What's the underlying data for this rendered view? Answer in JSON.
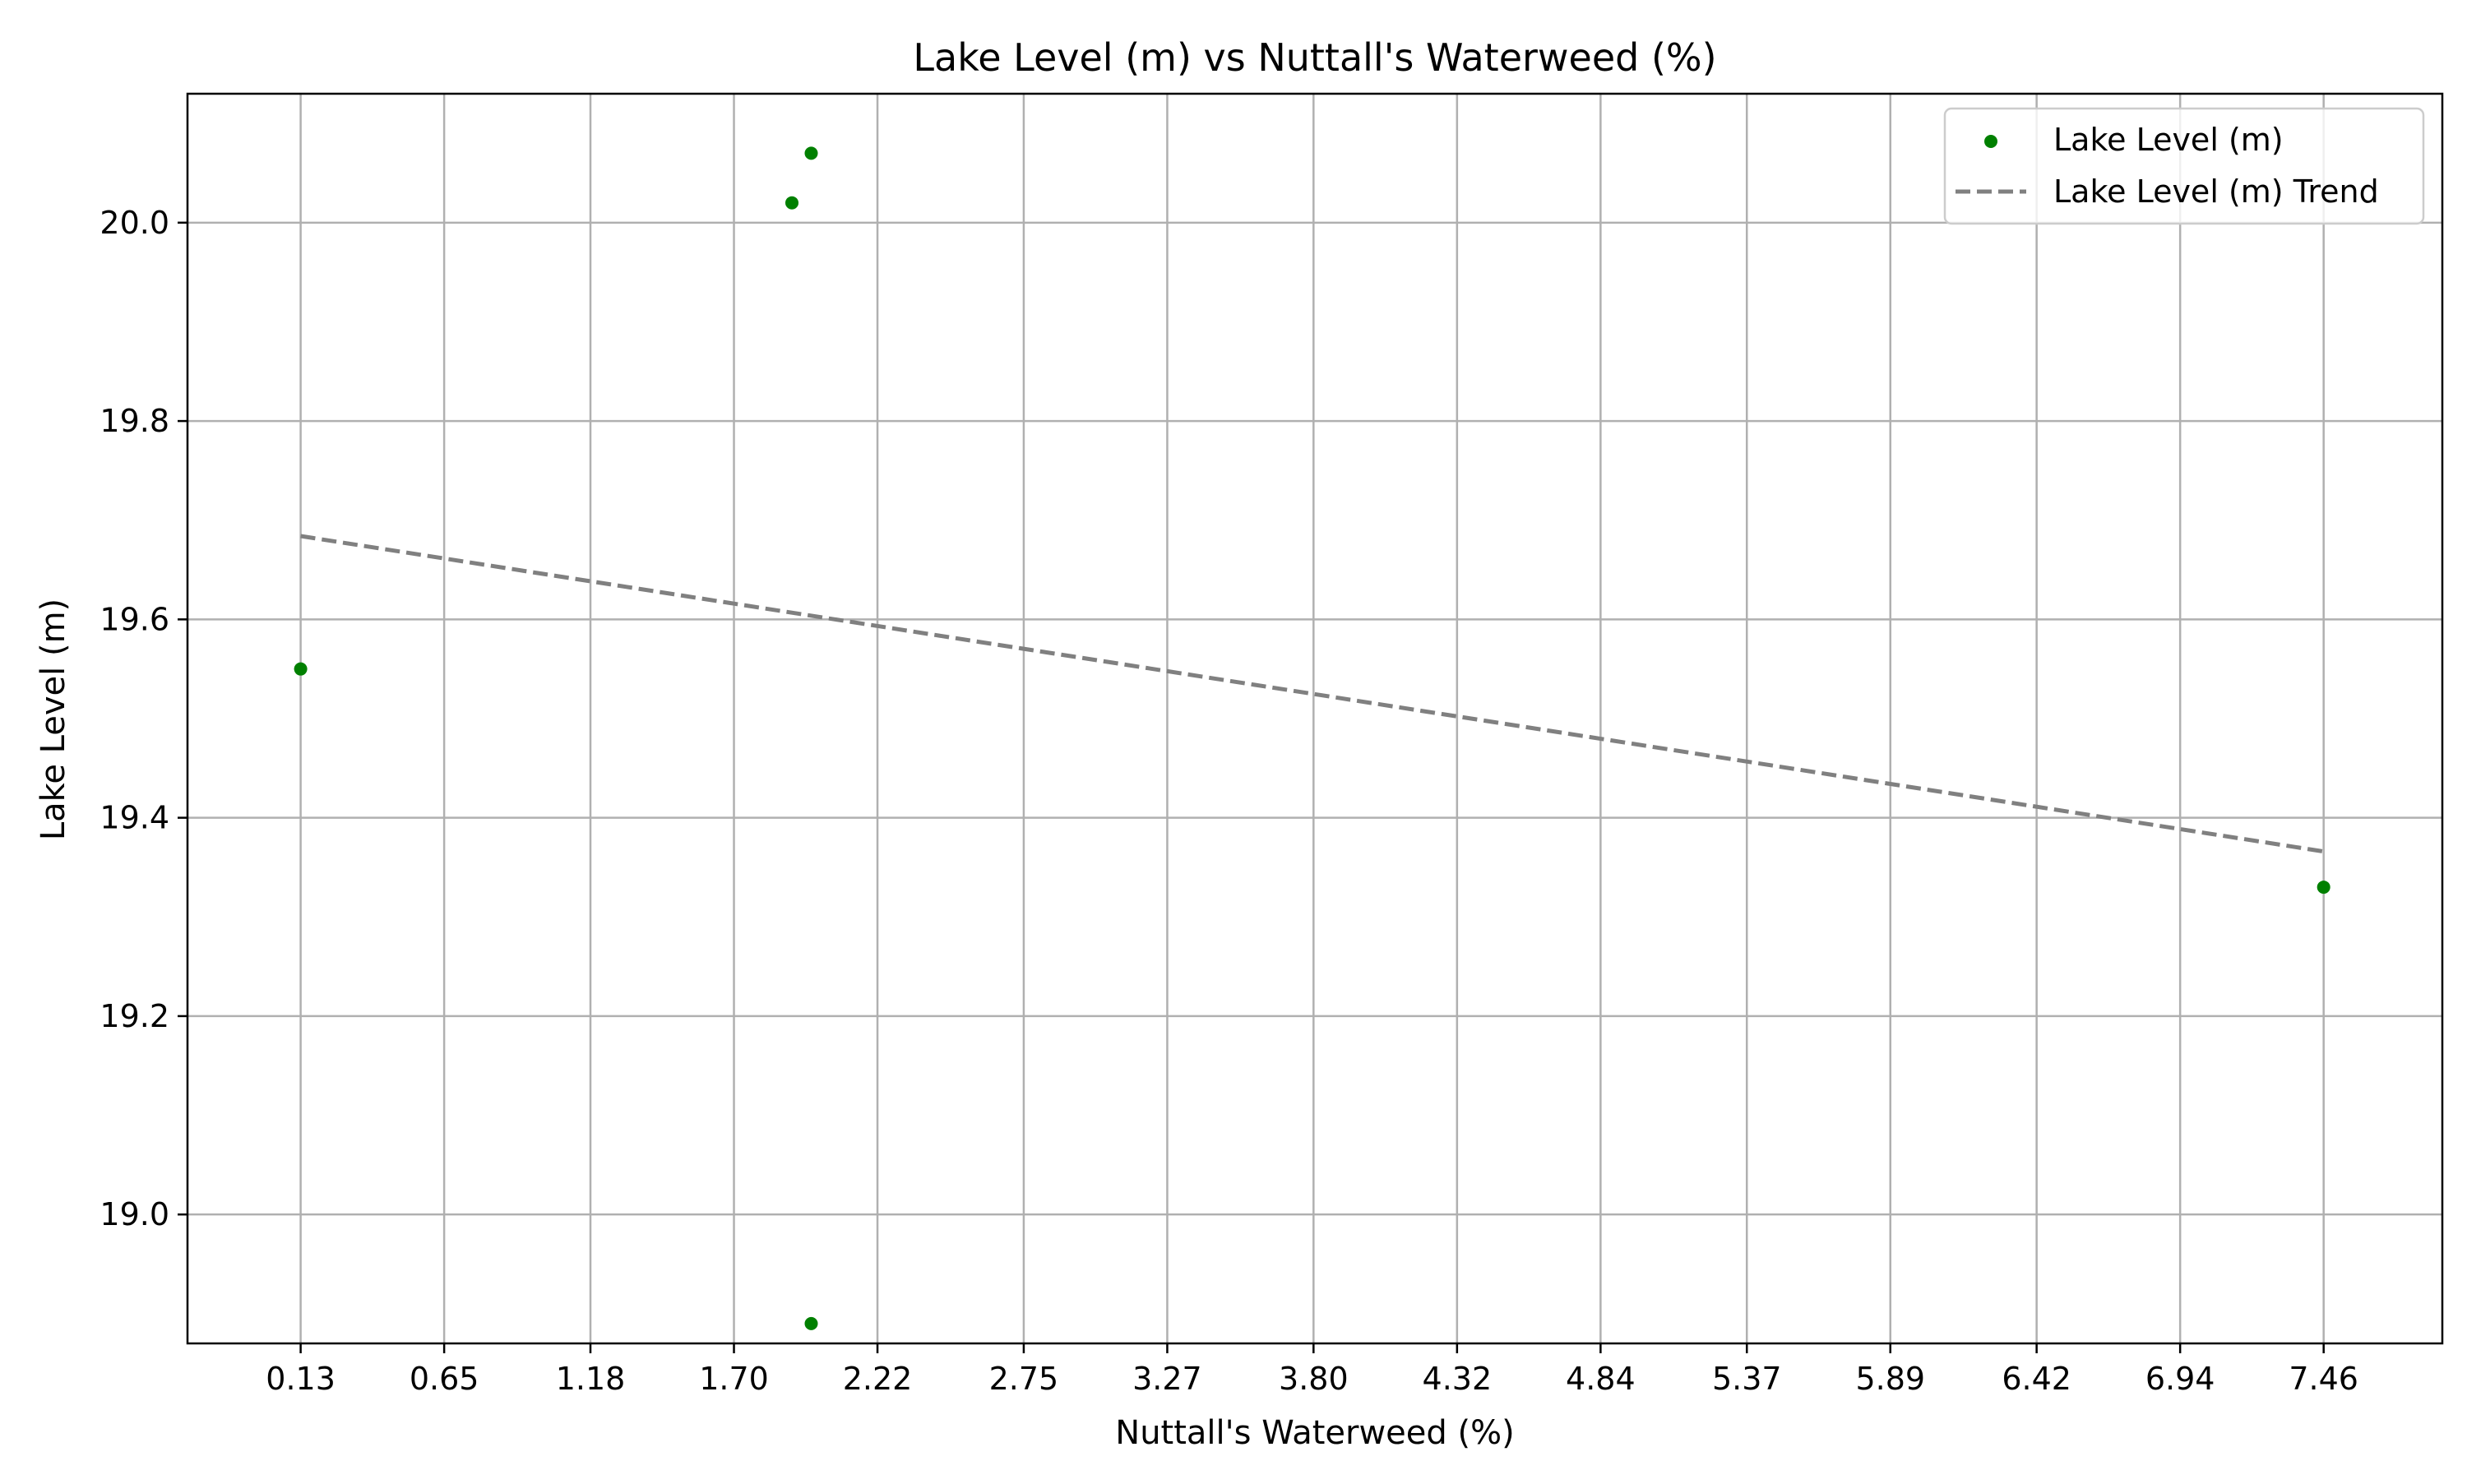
{
  "chart_data": {
    "type": "scatter",
    "title": "Lake Level (m) vs Nuttall's Waterweed (%)",
    "xlabel": "Nuttall's Waterweed (%)",
    "ylabel": "Lake Level (m)",
    "xlim": [
      -0.28,
      7.89
    ],
    "ylim": [
      18.87,
      20.13
    ],
    "x_ticks": [
      0.13,
      0.65,
      1.18,
      1.7,
      2.22,
      2.75,
      3.27,
      3.8,
      4.32,
      4.84,
      5.37,
      5.89,
      6.42,
      6.94,
      7.46
    ],
    "x_tick_labels": [
      "0.13",
      "0.65",
      "1.18",
      "1.70",
      "2.22",
      "2.75",
      "3.27",
      "3.80",
      "4.32",
      "4.84",
      "5.37",
      "5.89",
      "6.42",
      "6.94",
      "7.46"
    ],
    "y_ticks": [
      19.0,
      19.2,
      19.4,
      19.6,
      19.8,
      20.0
    ],
    "y_tick_labels": [
      "19.0",
      "19.2",
      "19.4",
      "19.6",
      "19.8",
      "20.0"
    ],
    "grid": true,
    "legend_position": "top-right",
    "series": [
      {
        "name": "Lake Level (m)",
        "kind": "scatter",
        "color": "#008000",
        "points": [
          {
            "x": 0.13,
            "y": 19.55
          },
          {
            "x": 1.91,
            "y": 20.02
          },
          {
            "x": 1.98,
            "y": 20.07
          },
          {
            "x": 1.98,
            "y": 18.89
          },
          {
            "x": 7.46,
            "y": 19.33
          }
        ]
      },
      {
        "name": "Lake Level (m) Trend",
        "kind": "line",
        "style": "dashed",
        "color": "#808080",
        "points": [
          {
            "x": 0.13,
            "y": 19.684
          },
          {
            "x": 7.46,
            "y": 19.366
          }
        ]
      }
    ]
  }
}
